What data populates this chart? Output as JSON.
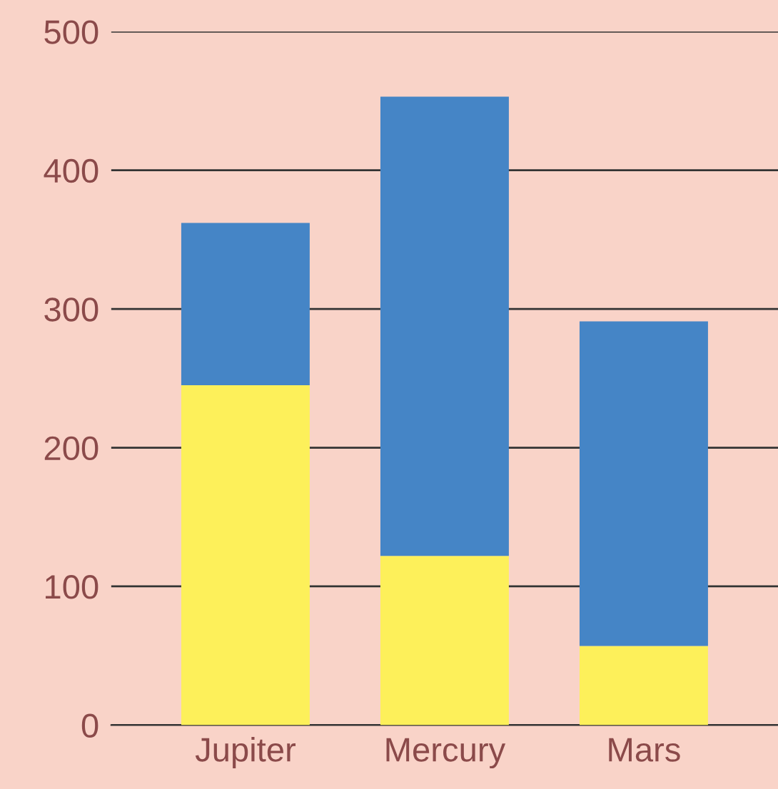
{
  "chart_data": {
    "type": "bar",
    "stacked": true,
    "categories": [
      "Jupiter",
      "Mercury",
      "Mars"
    ],
    "series": [
      {
        "color": "#fdf05a",
        "values": [
          245,
          122,
          57
        ]
      },
      {
        "color": "#4585c6",
        "values": [
          117,
          331,
          234
        ]
      }
    ],
    "ylim": [
      0,
      500
    ],
    "yticks": [
      0,
      100,
      200,
      300,
      400,
      500
    ],
    "grid": "y"
  }
}
